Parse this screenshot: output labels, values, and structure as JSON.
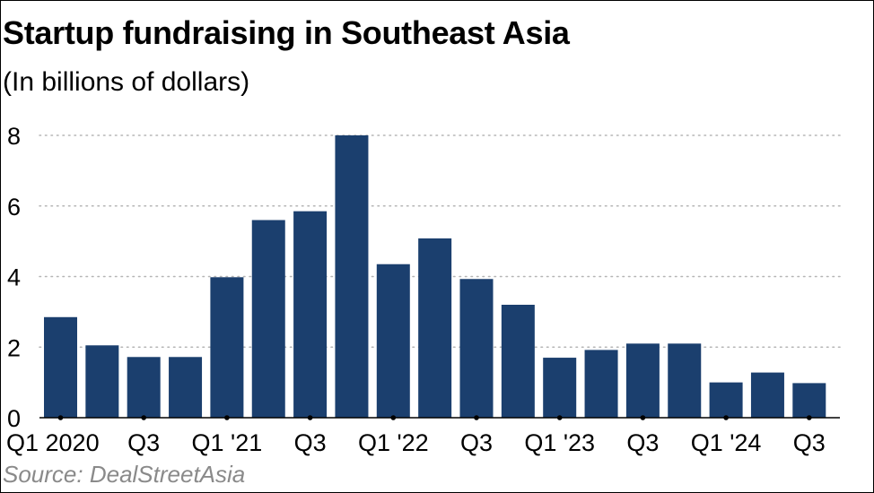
{
  "title": "Startup fundraising in Southeast Asia",
  "subtitle": "(In billions of dollars)",
  "source": "Source: DealStreetAsia",
  "colors": {
    "bar": "#1b3f6e",
    "grid": "#b5b5b5",
    "axis": "#000000",
    "text": "#000000",
    "source": "#8a8a8a"
  },
  "chart_data": {
    "type": "bar",
    "title": "Startup fundraising in Southeast Asia",
    "ylabel": "(In billions of dollars)",
    "xlabel": "",
    "ylim": [
      0,
      8
    ],
    "yticks": [
      0,
      2,
      4,
      6,
      8
    ],
    "grid": true,
    "categories": [
      "Q1 2020",
      "Q2 2020",
      "Q3 2020",
      "Q4 2020",
      "Q1 2021",
      "Q2 2021",
      "Q3 2021",
      "Q4 2021",
      "Q1 2022",
      "Q2 2022",
      "Q3 2022",
      "Q4 2022",
      "Q1 2023",
      "Q2 2023",
      "Q3 2023",
      "Q4 2023",
      "Q1 2024",
      "Q2 2024",
      "Q3 2024"
    ],
    "values": [
      2.85,
      2.05,
      1.72,
      1.72,
      3.98,
      5.6,
      5.85,
      8.0,
      4.35,
      5.08,
      3.93,
      3.2,
      1.7,
      1.92,
      2.1,
      2.1,
      1.0,
      1.28,
      0.98
    ],
    "tick_labels": [
      {
        "index": 0,
        "label": "Q1 2020"
      },
      {
        "index": 2,
        "label": "Q3"
      },
      {
        "index": 4,
        "label": "Q1 '21"
      },
      {
        "index": 6,
        "label": "Q3"
      },
      {
        "index": 8,
        "label": "Q1 '22"
      },
      {
        "index": 10,
        "label": "Q3"
      },
      {
        "index": 12,
        "label": "Q1 '23"
      },
      {
        "index": 14,
        "label": "Q3"
      },
      {
        "index": 16,
        "label": "Q1 '24"
      },
      {
        "index": 18,
        "label": "Q3"
      }
    ]
  }
}
